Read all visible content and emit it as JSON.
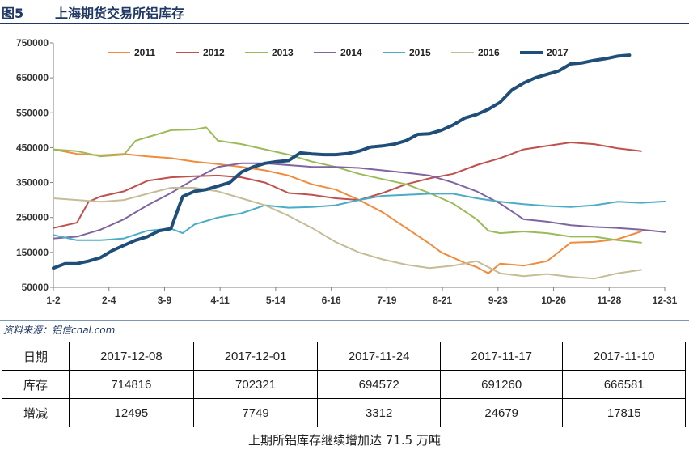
{
  "header": {
    "figure_number": "图5",
    "title": "上海期货交易所铝库存"
  },
  "source": "资料来源：铝信cnal.com",
  "table": {
    "columns": [
      "日期",
      "2017-12-08",
      "2017-12-01",
      "2017-11-24",
      "2017-11-17",
      "2017-11-10"
    ],
    "rows": [
      [
        "库存",
        "714816",
        "702321",
        "694572",
        "691260",
        "666581"
      ],
      [
        "增减",
        "12495",
        "7749",
        "3312",
        "24679",
        "17815"
      ]
    ]
  },
  "footer": "上期所铝库存继续增加达 71.5 万吨",
  "chart_data": {
    "type": "line",
    "title": "",
    "xlabel": "",
    "ylabel": "",
    "ylim": [
      50000,
      750000
    ],
    "yticks": [
      50000,
      150000,
      250000,
      350000,
      450000,
      550000,
      650000,
      750000
    ],
    "ytick_labels": [
      "50000",
      "150000",
      "250000",
      "350000",
      "450000",
      "550000",
      "650000",
      "750000"
    ],
    "x_tick_labels": [
      "1-2",
      "2-4",
      "3-9",
      "4-11",
      "5-14",
      "6-16",
      "7-19",
      "8-21",
      "9-23",
      "10-26",
      "11-28",
      "12-31"
    ],
    "x_domain": [
      0,
      52
    ],
    "grid": false,
    "legend_position": "top",
    "series": [
      {
        "name": "2011",
        "color": "#f08c3c",
        "width": 2,
        "x": [
          0,
          2,
          4,
          6,
          8,
          10,
          12,
          14,
          16,
          18,
          20,
          22,
          24,
          26,
          28,
          30,
          32,
          33,
          34,
          35,
          36,
          37,
          38,
          40,
          42,
          44,
          46,
          48,
          50
        ],
        "values": [
          445000,
          432000,
          428000,
          432000,
          425000,
          420000,
          410000,
          403000,
          395000,
          385000,
          370000,
          345000,
          330000,
          300000,
          265000,
          220000,
          175000,
          150000,
          135000,
          120000,
          108000,
          90000,
          118000,
          112000,
          125000,
          178000,
          180000,
          188000,
          210000
        ]
      },
      {
        "name": "2012",
        "color": "#c0504d",
        "width": 2,
        "x": [
          0,
          2,
          3,
          4,
          6,
          8,
          10,
          12,
          14,
          16,
          18,
          20,
          22,
          24,
          26,
          28,
          30,
          32,
          34,
          36,
          38,
          40,
          42,
          44,
          46,
          48,
          50
        ],
        "values": [
          220000,
          235000,
          295000,
          310000,
          325000,
          355000,
          365000,
          368000,
          370000,
          365000,
          350000,
          320000,
          315000,
          305000,
          300000,
          320000,
          345000,
          362000,
          375000,
          400000,
          420000,
          445000,
          455000,
          465000,
          460000,
          448000,
          440000
        ]
      },
      {
        "name": "2013",
        "color": "#9bbb59",
        "width": 2,
        "x": [
          0,
          2,
          4,
          6,
          7,
          8,
          10,
          12,
          13,
          14,
          16,
          18,
          20,
          22,
          24,
          26,
          28,
          30,
          32,
          34,
          36,
          37,
          38,
          40,
          42,
          44,
          46,
          48,
          50
        ],
        "values": [
          445000,
          440000,
          425000,
          430000,
          470000,
          480000,
          500000,
          502000,
          508000,
          470000,
          460000,
          445000,
          430000,
          410000,
          395000,
          375000,
          360000,
          345000,
          320000,
          290000,
          245000,
          212000,
          205000,
          210000,
          205000,
          195000,
          195000,
          185000,
          178000
        ]
      },
      {
        "name": "2014",
        "color": "#8064a2",
        "width": 2,
        "x": [
          0,
          2,
          4,
          6,
          8,
          10,
          12,
          14,
          16,
          18,
          20,
          22,
          24,
          26,
          28,
          30,
          32,
          34,
          36,
          38,
          40,
          42,
          44,
          46,
          48,
          50,
          52
        ],
        "values": [
          190000,
          195000,
          215000,
          245000,
          285000,
          320000,
          360000,
          395000,
          405000,
          405000,
          400000,
          395000,
          395000,
          392000,
          385000,
          378000,
          370000,
          350000,
          325000,
          290000,
          245000,
          238000,
          228000,
          223000,
          220000,
          215000,
          208000
        ]
      },
      {
        "name": "2015",
        "color": "#4bacc6",
        "width": 2,
        "x": [
          0,
          2,
          4,
          6,
          8,
          10,
          11,
          12,
          14,
          16,
          18,
          20,
          22,
          24,
          26,
          28,
          30,
          32,
          34,
          36,
          38,
          40,
          42,
          44,
          46,
          48,
          50,
          52
        ],
        "values": [
          200000,
          185000,
          185000,
          190000,
          212000,
          218000,
          205000,
          230000,
          250000,
          262000,
          285000,
          278000,
          280000,
          285000,
          300000,
          312000,
          315000,
          318000,
          318000,
          305000,
          295000,
          288000,
          283000,
          280000,
          285000,
          295000,
          292000,
          296000
        ]
      },
      {
        "name": "2016",
        "color": "#c4bd97",
        "width": 2,
        "x": [
          0,
          2,
          4,
          6,
          8,
          10,
          12,
          14,
          16,
          18,
          20,
          22,
          24,
          26,
          28,
          30,
          32,
          34,
          36,
          38,
          40,
          42,
          44,
          46,
          48,
          50
        ],
        "values": [
          305000,
          300000,
          295000,
          300000,
          318000,
          335000,
          335000,
          325000,
          305000,
          285000,
          255000,
          220000,
          180000,
          150000,
          130000,
          115000,
          105000,
          112000,
          125000,
          90000,
          82000,
          88000,
          80000,
          75000,
          90000,
          100000
        ]
      },
      {
        "name": "2017",
        "color": "#1f4e79",
        "width": 4,
        "x": [
          0,
          1,
          2,
          3,
          4,
          5,
          6,
          7,
          8,
          9,
          10,
          11,
          12,
          13,
          14,
          15,
          16,
          17,
          18,
          19,
          20,
          21,
          22,
          23,
          24,
          25,
          26,
          27,
          28,
          29,
          30,
          31,
          32,
          33,
          34,
          35,
          36,
          37,
          38,
          39,
          40,
          41,
          42,
          43,
          44,
          45,
          46,
          47,
          48,
          49
        ],
        "values": [
          105000,
          118000,
          118000,
          125000,
          135000,
          155000,
          170000,
          185000,
          195000,
          212000,
          218000,
          310000,
          325000,
          330000,
          340000,
          350000,
          380000,
          395000,
          405000,
          410000,
          413000,
          435000,
          432000,
          430000,
          430000,
          433000,
          440000,
          452000,
          455000,
          460000,
          470000,
          488000,
          490000,
          500000,
          515000,
          535000,
          545000,
          560000,
          580000,
          615000,
          635000,
          650000,
          660000,
          670000,
          690000,
          693000,
          700000,
          705000,
          712000,
          715000
        ]
      }
    ]
  }
}
